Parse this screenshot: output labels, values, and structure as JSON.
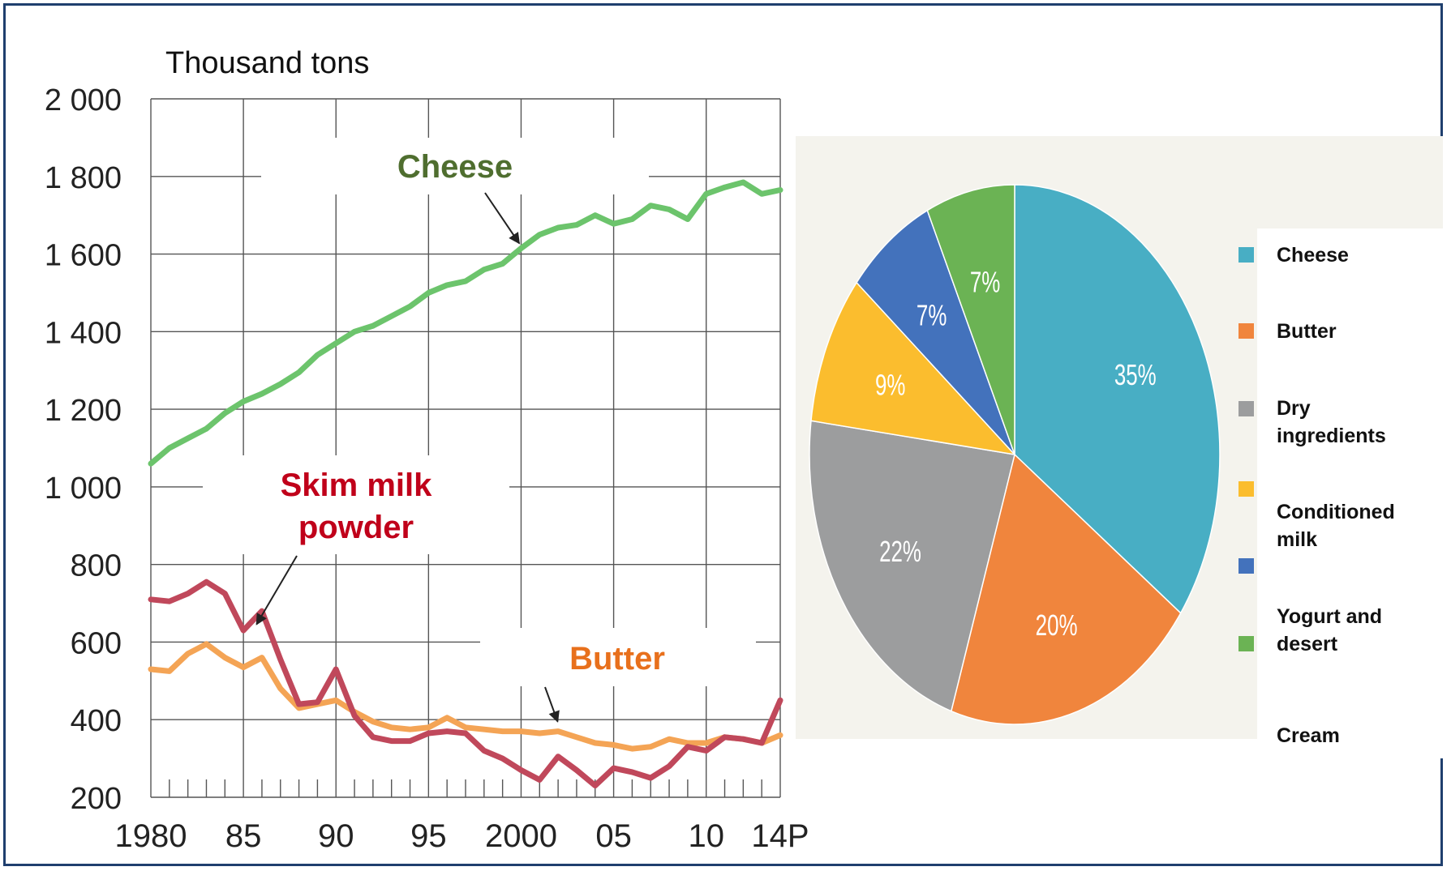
{
  "colors": {
    "frame": "#1f3f6e",
    "grid": "#555555",
    "cheese_line": "#6cc46c",
    "skim_line": "#c0485b",
    "butter_line": "#f4a455",
    "cheese_label": "#4f6e2f",
    "skim_label": "#c0001a",
    "butter_label": "#e8701c"
  },
  "chart_data": [
    {
      "type": "line",
      "ylabel": "Thousand tons",
      "xlim": [
        1980,
        2014
      ],
      "ylim": [
        200,
        2000
      ],
      "y_ticks": [
        {
          "value": 2000,
          "label": "2 000"
        },
        {
          "value": 1800,
          "label": "1 800"
        },
        {
          "value": 1600,
          "label": "1 600"
        },
        {
          "value": 1400,
          "label": "1 400"
        },
        {
          "value": 1200,
          "label": "1 200"
        },
        {
          "value": 1000,
          "label": "1 000"
        },
        {
          "value": 800,
          "label": "800"
        },
        {
          "value": 600,
          "label": "600"
        },
        {
          "value": 400,
          "label": "400"
        },
        {
          "value": 200,
          "label": "200"
        }
      ],
      "x_ticks": [
        {
          "value": 1980,
          "label": "1980"
        },
        {
          "value": 1985,
          "label": "85"
        },
        {
          "value": 1990,
          "label": "90"
        },
        {
          "value": 1995,
          "label": "95"
        },
        {
          "value": 2000,
          "label": "2000"
        },
        {
          "value": 2005,
          "label": "05"
        },
        {
          "value": 2010,
          "label": "10"
        },
        {
          "value": 2014,
          "label": "14P"
        }
      ],
      "grid": true,
      "x": [
        1980,
        1981,
        1982,
        1983,
        1984,
        1985,
        1986,
        1987,
        1988,
        1989,
        1990,
        1991,
        1992,
        1993,
        1994,
        1995,
        1996,
        1997,
        1998,
        1999,
        2000,
        2001,
        2002,
        2003,
        2004,
        2005,
        2006,
        2007,
        2008,
        2009,
        2010,
        2011,
        2012,
        2013,
        2014
      ],
      "series": [
        {
          "name": "Cheese",
          "color": "#6cc46c",
          "values": [
            1060,
            1100,
            1125,
            1150,
            1190,
            1220,
            1240,
            1265,
            1295,
            1340,
            1370,
            1400,
            1415,
            1440,
            1465,
            1500,
            1520,
            1530,
            1560,
            1575,
            1615,
            1650,
            1668,
            1675,
            1700,
            1678,
            1690,
            1725,
            1715,
            1690,
            1755,
            1772,
            1785,
            1755,
            1765
          ]
        },
        {
          "name": "Skim milk powder",
          "color": "#c0485b",
          "values": [
            710,
            705,
            725,
            755,
            725,
            630,
            680,
            555,
            440,
            445,
            530,
            410,
            355,
            345,
            345,
            365,
            370,
            365,
            320,
            300,
            270,
            245,
            305,
            270,
            230,
            275,
            265,
            250,
            280,
            330,
            320,
            355,
            350,
            340,
            450
          ]
        },
        {
          "name": "Butter",
          "color": "#f4a455",
          "values": [
            530,
            525,
            570,
            595,
            560,
            535,
            560,
            480,
            430,
            440,
            450,
            420,
            395,
            380,
            375,
            380,
            405,
            380,
            375,
            370,
            370,
            365,
            370,
            355,
            340,
            335,
            325,
            330,
            350,
            340,
            340,
            355,
            350,
            340,
            360
          ]
        }
      ],
      "annotations": [
        {
          "text": "Cheese",
          "target_x": 1999.9,
          "target_y": 1615
        },
        {
          "text": "Skim milk\npowder",
          "target_x": 1985.8,
          "target_y": 675
        },
        {
          "text": "Butter",
          "target_x": 2001.8,
          "target_y": 370
        }
      ]
    },
    {
      "type": "pie",
      "slices": [
        {
          "label": "Cheese",
          "value": 35,
          "display": "35%",
          "color": "#48aec4"
        },
        {
          "label": "Butter",
          "value": 20,
          "display": "20%",
          "color": "#f0853d"
        },
        {
          "label": "Dry ingredients",
          "value": 22,
          "display": "22%",
          "color": "#9c9d9e"
        },
        {
          "label": "Conditioned milk",
          "value": 9,
          "display": "9%",
          "color": "#fbbd2e"
        },
        {
          "label": "Yogurt and desert",
          "value": 7,
          "display": "7%",
          "color": "#4372bc"
        },
        {
          "label": "Cream",
          "value": 7,
          "display": "7%",
          "color": "#6bb354"
        }
      ],
      "legend": [
        {
          "label": "Cheese",
          "color": "#48aec4"
        },
        {
          "label": "Butter",
          "color": "#f0853d"
        },
        {
          "label": "Dry ingredients",
          "color": "#9c9d9e"
        },
        {
          "label": "Conditioned milk",
          "color": "#fbbd2e"
        },
        {
          "label": "Yogurt and desert",
          "color": "#4372bc"
        },
        {
          "label": "Cream",
          "color": "#6bb354"
        }
      ],
      "legend_position": "right",
      "background": "#f4f3ed"
    }
  ]
}
